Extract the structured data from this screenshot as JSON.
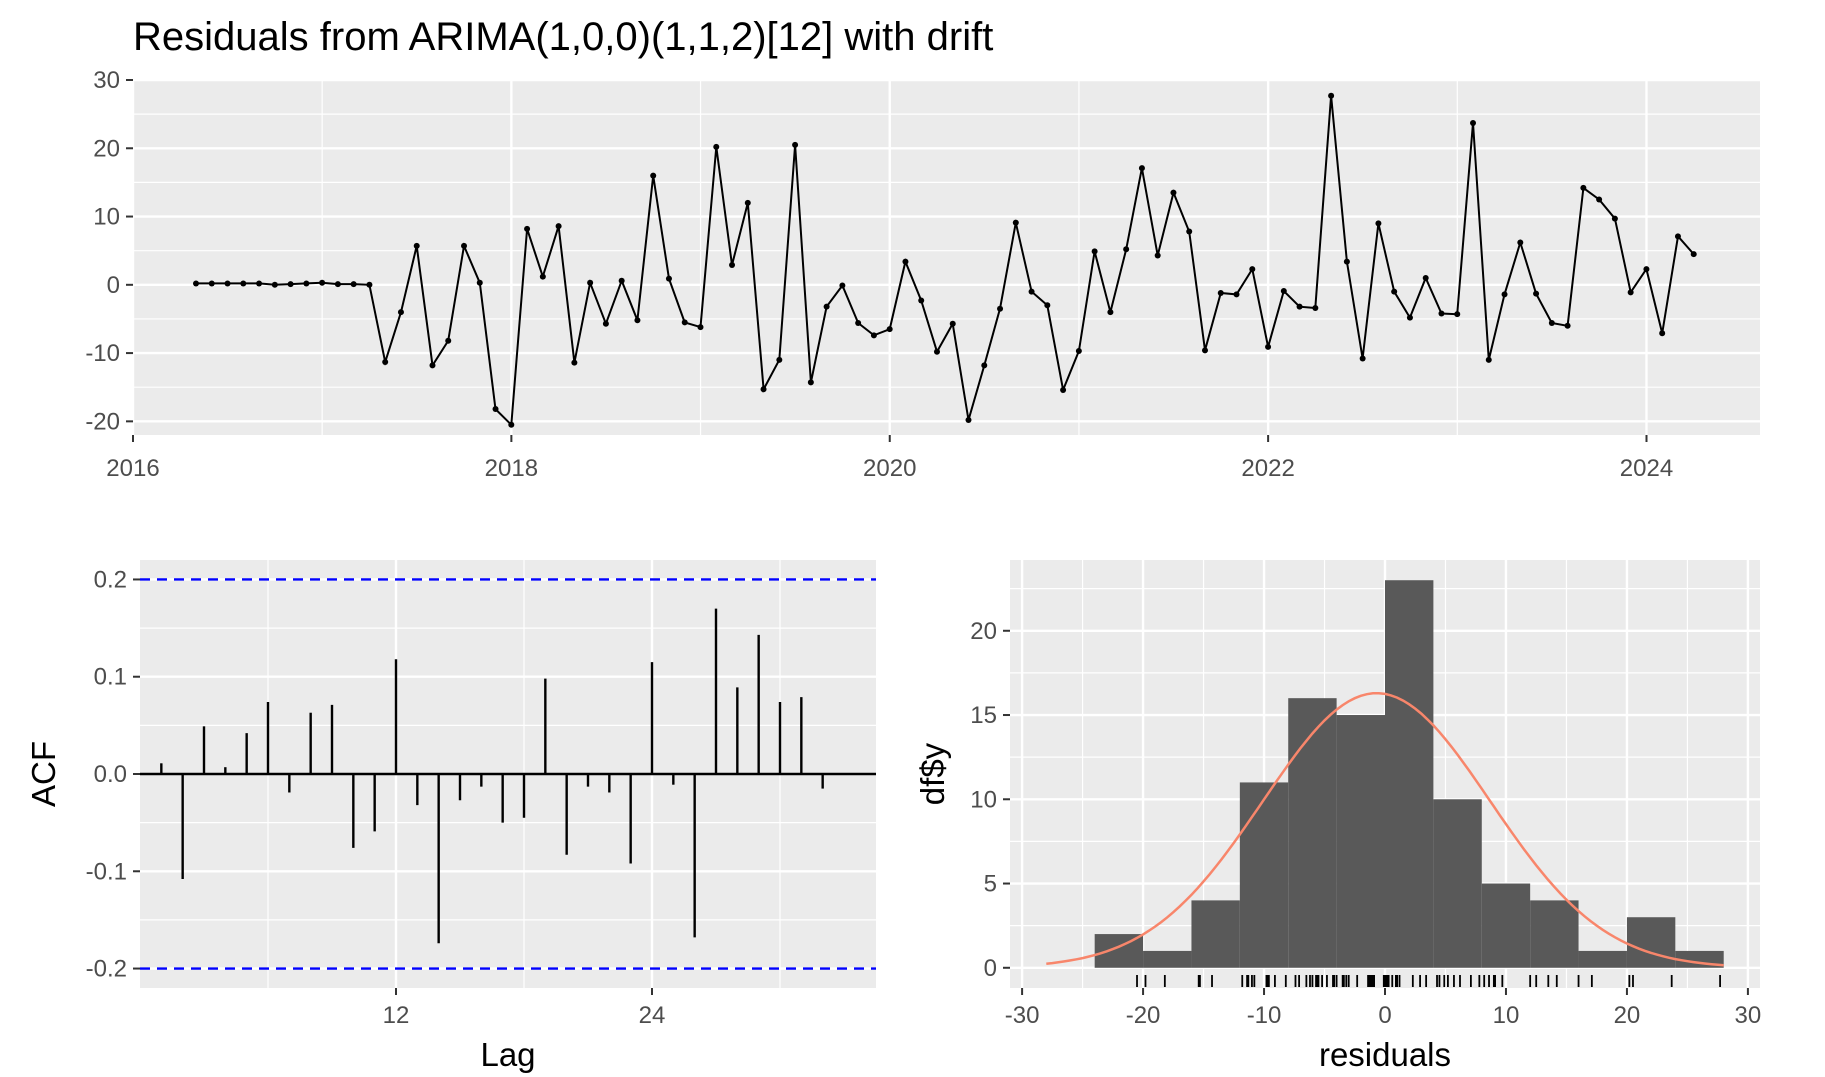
{
  "chart_data": [
    {
      "type": "line",
      "title": "Residuals from ARIMA(1,0,0)(1,1,2)[12] with drift",
      "xlabel": "",
      "ylabel": "",
      "xlim": [
        2016,
        2024.6
      ],
      "ylim": [
        -22,
        30
      ],
      "x_ticks": [
        "2016",
        "2018",
        "2020",
        "2022",
        "2024"
      ],
      "y_ticks": [
        "30",
        "20",
        "10",
        "0",
        "-10",
        "-20"
      ],
      "start": 2016.333,
      "frequency": 12,
      "values": [
        0.2,
        0.2,
        0.2,
        0.2,
        0.2,
        0.0,
        0.1,
        0.2,
        0.3,
        0.1,
        0.1,
        0.0,
        -11.3,
        -4.0,
        5.7,
        -11.8,
        -8.2,
        5.7,
        0.3,
        -18.2,
        -20.5,
        8.2,
        1.2,
        8.6,
        -11.4,
        0.3,
        -5.7,
        0.6,
        -5.2,
        16.0,
        0.9,
        -5.5,
        -6.2,
        20.2,
        2.9,
        12.0,
        -15.3,
        -11.0,
        20.5,
        -14.3,
        -3.2,
        -0.1,
        -5.6,
        -7.4,
        -6.5,
        3.4,
        -2.3,
        -9.8,
        -5.7,
        -19.8,
        -11.8,
        -3.5,
        9.1,
        -1.0,
        -3.0,
        -15.4,
        -9.7,
        4.9,
        -4.0,
        5.2,
        17.1,
        4.3,
        13.5,
        7.8,
        -9.6,
        -1.2,
        -1.4,
        2.3,
        -9.1,
        -0.9,
        -3.2,
        -3.4,
        27.7,
        3.4,
        -10.8,
        9.0,
        -1.0,
        -4.8,
        1.0,
        -4.2,
        -4.3,
        23.7,
        -11.0,
        -1.4,
        6.2,
        -1.3,
        -5.6,
        -6.0,
        14.2,
        12.5,
        9.7,
        -1.1,
        2.3,
        -7.1,
        7.1,
        4.5
      ]
    },
    {
      "type": "bar",
      "title": "",
      "xlabel": "Lag",
      "ylabel": "ACF",
      "xlim": [
        0,
        34.5
      ],
      "ylim": [
        -0.22,
        0.22
      ],
      "x_ticks": [
        "12",
        "24"
      ],
      "y_ticks": [
        "0.2",
        "0.1",
        "0.0",
        "-0.1",
        "-0.2"
      ],
      "confidence_bound": 0.2,
      "bound_color": "#0000ff",
      "lags": [
        1,
        2,
        3,
        4,
        5,
        6,
        7,
        8,
        9,
        10,
        11,
        12,
        13,
        14,
        15,
        16,
        17,
        18,
        19,
        20,
        21,
        22,
        23,
        24,
        25,
        26,
        27,
        28,
        29,
        30,
        31,
        32,
        33
      ],
      "values": [
        0.011,
        -0.108,
        0.049,
        0.007,
        0.042,
        0.074,
        -0.019,
        0.063,
        0.071,
        -0.076,
        -0.059,
        0.118,
        -0.032,
        -0.174,
        -0.027,
        -0.013,
        -0.05,
        -0.045,
        0.098,
        -0.083,
        -0.013,
        -0.019,
        -0.092,
        0.115,
        -0.011,
        -0.168,
        0.17,
        0.089,
        0.143,
        0.074,
        0.079,
        -0.015,
        0.0
      ]
    },
    {
      "type": "bar",
      "title": "",
      "xlabel": "residuals",
      "ylabel": "df$y",
      "xlim": [
        -31,
        31
      ],
      "ylim": [
        -1.2,
        24.2
      ],
      "x_ticks": [
        "-30",
        "-20",
        "-10",
        "0",
        "10",
        "20",
        "30"
      ],
      "y_ticks": [
        "20",
        "15",
        "10",
        "5",
        "0"
      ],
      "bin_width": 4,
      "bin_starts": [
        -24,
        -20,
        -16,
        -12,
        -8,
        -4,
        0,
        4,
        8,
        12,
        16,
        20,
        24
      ],
      "values": [
        2,
        1,
        4,
        11,
        16,
        15,
        23,
        10,
        5,
        4,
        1,
        3,
        1
      ],
      "bar_color": "#595959",
      "density_curve": {
        "mean": -0.7,
        "sd": 9.4,
        "n": 96,
        "color": "#f8866b"
      },
      "rug_color": "#000000"
    }
  ]
}
